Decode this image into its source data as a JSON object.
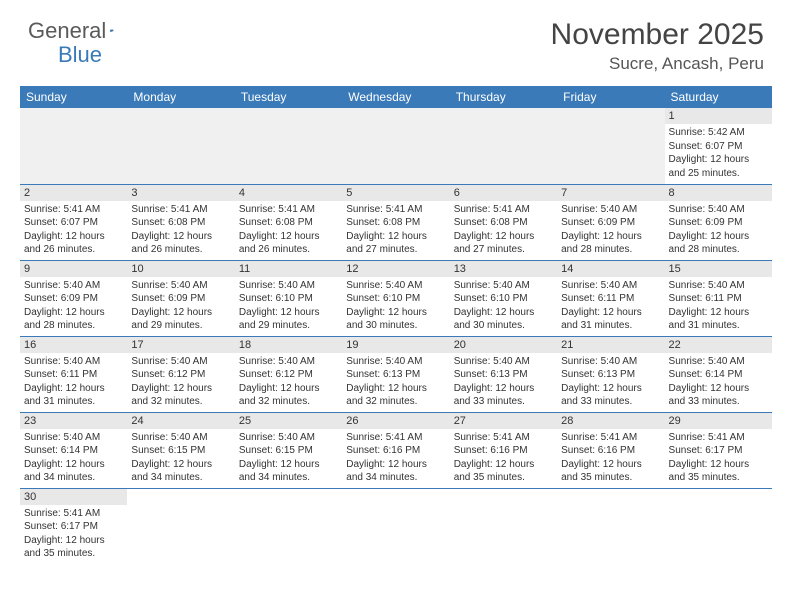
{
  "logo": {
    "text1": "General",
    "text2": "Blue"
  },
  "title": "November 2025",
  "location": "Sucre, Ancash, Peru",
  "colors": {
    "header_bg": "#3a7ab8",
    "header_text": "#ffffff",
    "daynum_bg": "#e8e8e8",
    "empty_bg": "#f0f0f0",
    "border": "#3a7ab8",
    "text": "#333333"
  },
  "weekdays": [
    "Sunday",
    "Monday",
    "Tuesday",
    "Wednesday",
    "Thursday",
    "Friday",
    "Saturday"
  ],
  "weeks": [
    [
      null,
      null,
      null,
      null,
      null,
      null,
      {
        "n": "1",
        "sr": "Sunrise: 5:42 AM",
        "ss": "Sunset: 6:07 PM",
        "d1": "Daylight: 12 hours",
        "d2": "and 25 minutes."
      }
    ],
    [
      {
        "n": "2",
        "sr": "Sunrise: 5:41 AM",
        "ss": "Sunset: 6:07 PM",
        "d1": "Daylight: 12 hours",
        "d2": "and 26 minutes."
      },
      {
        "n": "3",
        "sr": "Sunrise: 5:41 AM",
        "ss": "Sunset: 6:08 PM",
        "d1": "Daylight: 12 hours",
        "d2": "and 26 minutes."
      },
      {
        "n": "4",
        "sr": "Sunrise: 5:41 AM",
        "ss": "Sunset: 6:08 PM",
        "d1": "Daylight: 12 hours",
        "d2": "and 26 minutes."
      },
      {
        "n": "5",
        "sr": "Sunrise: 5:41 AM",
        "ss": "Sunset: 6:08 PM",
        "d1": "Daylight: 12 hours",
        "d2": "and 27 minutes."
      },
      {
        "n": "6",
        "sr": "Sunrise: 5:41 AM",
        "ss": "Sunset: 6:08 PM",
        "d1": "Daylight: 12 hours",
        "d2": "and 27 minutes."
      },
      {
        "n": "7",
        "sr": "Sunrise: 5:40 AM",
        "ss": "Sunset: 6:09 PM",
        "d1": "Daylight: 12 hours",
        "d2": "and 28 minutes."
      },
      {
        "n": "8",
        "sr": "Sunrise: 5:40 AM",
        "ss": "Sunset: 6:09 PM",
        "d1": "Daylight: 12 hours",
        "d2": "and 28 minutes."
      }
    ],
    [
      {
        "n": "9",
        "sr": "Sunrise: 5:40 AM",
        "ss": "Sunset: 6:09 PM",
        "d1": "Daylight: 12 hours",
        "d2": "and 28 minutes."
      },
      {
        "n": "10",
        "sr": "Sunrise: 5:40 AM",
        "ss": "Sunset: 6:09 PM",
        "d1": "Daylight: 12 hours",
        "d2": "and 29 minutes."
      },
      {
        "n": "11",
        "sr": "Sunrise: 5:40 AM",
        "ss": "Sunset: 6:10 PM",
        "d1": "Daylight: 12 hours",
        "d2": "and 29 minutes."
      },
      {
        "n": "12",
        "sr": "Sunrise: 5:40 AM",
        "ss": "Sunset: 6:10 PM",
        "d1": "Daylight: 12 hours",
        "d2": "and 30 minutes."
      },
      {
        "n": "13",
        "sr": "Sunrise: 5:40 AM",
        "ss": "Sunset: 6:10 PM",
        "d1": "Daylight: 12 hours",
        "d2": "and 30 minutes."
      },
      {
        "n": "14",
        "sr": "Sunrise: 5:40 AM",
        "ss": "Sunset: 6:11 PM",
        "d1": "Daylight: 12 hours",
        "d2": "and 31 minutes."
      },
      {
        "n": "15",
        "sr": "Sunrise: 5:40 AM",
        "ss": "Sunset: 6:11 PM",
        "d1": "Daylight: 12 hours",
        "d2": "and 31 minutes."
      }
    ],
    [
      {
        "n": "16",
        "sr": "Sunrise: 5:40 AM",
        "ss": "Sunset: 6:11 PM",
        "d1": "Daylight: 12 hours",
        "d2": "and 31 minutes."
      },
      {
        "n": "17",
        "sr": "Sunrise: 5:40 AM",
        "ss": "Sunset: 6:12 PM",
        "d1": "Daylight: 12 hours",
        "d2": "and 32 minutes."
      },
      {
        "n": "18",
        "sr": "Sunrise: 5:40 AM",
        "ss": "Sunset: 6:12 PM",
        "d1": "Daylight: 12 hours",
        "d2": "and 32 minutes."
      },
      {
        "n": "19",
        "sr": "Sunrise: 5:40 AM",
        "ss": "Sunset: 6:13 PM",
        "d1": "Daylight: 12 hours",
        "d2": "and 32 minutes."
      },
      {
        "n": "20",
        "sr": "Sunrise: 5:40 AM",
        "ss": "Sunset: 6:13 PM",
        "d1": "Daylight: 12 hours",
        "d2": "and 33 minutes."
      },
      {
        "n": "21",
        "sr": "Sunrise: 5:40 AM",
        "ss": "Sunset: 6:13 PM",
        "d1": "Daylight: 12 hours",
        "d2": "and 33 minutes."
      },
      {
        "n": "22",
        "sr": "Sunrise: 5:40 AM",
        "ss": "Sunset: 6:14 PM",
        "d1": "Daylight: 12 hours",
        "d2": "and 33 minutes."
      }
    ],
    [
      {
        "n": "23",
        "sr": "Sunrise: 5:40 AM",
        "ss": "Sunset: 6:14 PM",
        "d1": "Daylight: 12 hours",
        "d2": "and 34 minutes."
      },
      {
        "n": "24",
        "sr": "Sunrise: 5:40 AM",
        "ss": "Sunset: 6:15 PM",
        "d1": "Daylight: 12 hours",
        "d2": "and 34 minutes."
      },
      {
        "n": "25",
        "sr": "Sunrise: 5:40 AM",
        "ss": "Sunset: 6:15 PM",
        "d1": "Daylight: 12 hours",
        "d2": "and 34 minutes."
      },
      {
        "n": "26",
        "sr": "Sunrise: 5:41 AM",
        "ss": "Sunset: 6:16 PM",
        "d1": "Daylight: 12 hours",
        "d2": "and 34 minutes."
      },
      {
        "n": "27",
        "sr": "Sunrise: 5:41 AM",
        "ss": "Sunset: 6:16 PM",
        "d1": "Daylight: 12 hours",
        "d2": "and 35 minutes."
      },
      {
        "n": "28",
        "sr": "Sunrise: 5:41 AM",
        "ss": "Sunset: 6:16 PM",
        "d1": "Daylight: 12 hours",
        "d2": "and 35 minutes."
      },
      {
        "n": "29",
        "sr": "Sunrise: 5:41 AM",
        "ss": "Sunset: 6:17 PM",
        "d1": "Daylight: 12 hours",
        "d2": "and 35 minutes."
      }
    ],
    [
      {
        "n": "30",
        "sr": "Sunrise: 5:41 AM",
        "ss": "Sunset: 6:17 PM",
        "d1": "Daylight: 12 hours",
        "d2": "and 35 minutes."
      },
      null,
      null,
      null,
      null,
      null,
      null
    ]
  ]
}
